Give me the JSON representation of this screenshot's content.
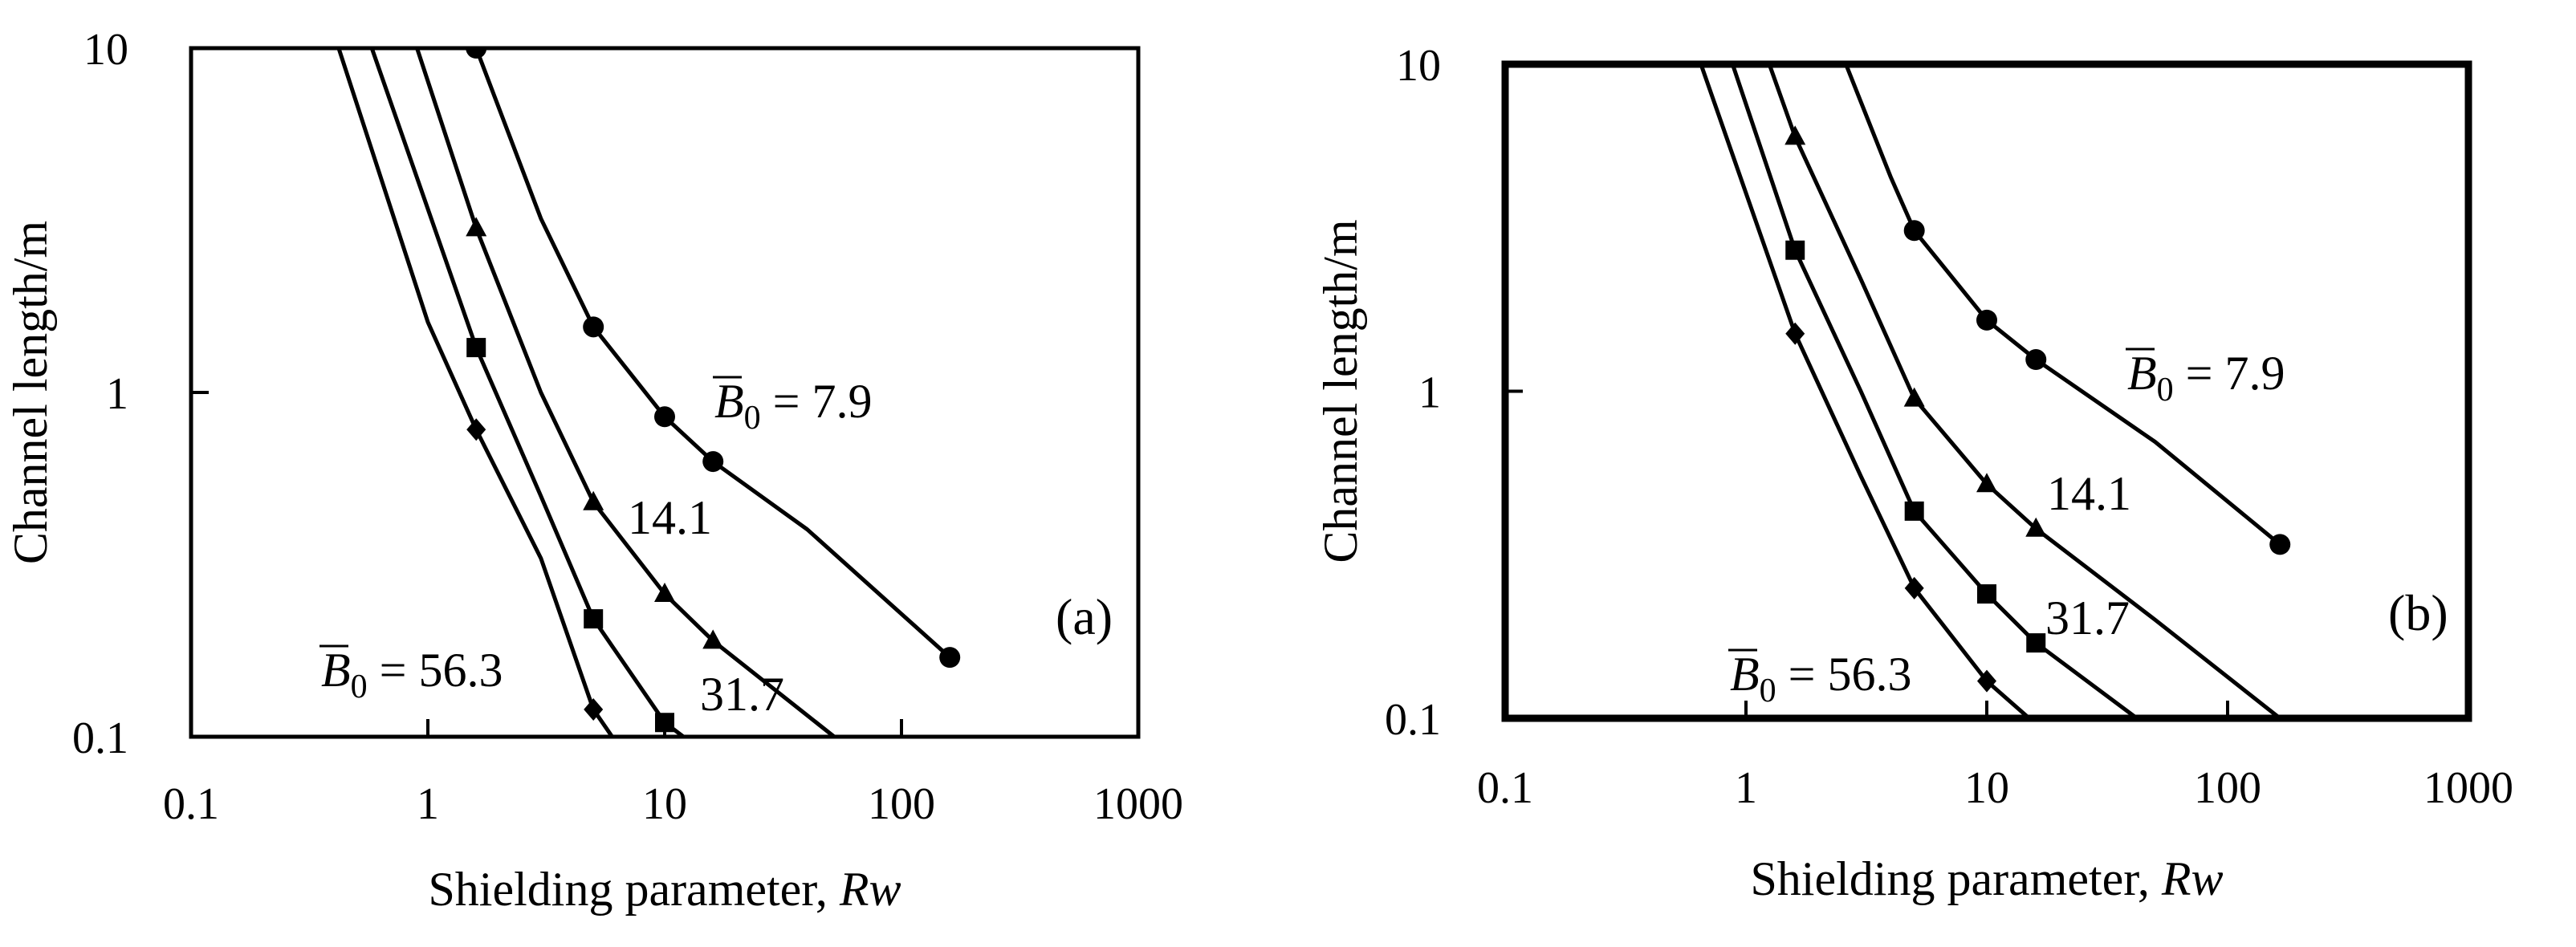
{
  "chart_data": [
    {
      "type": "line",
      "panel_label": "(a)",
      "xlabel": "Shielding parameter, ",
      "xlabel_italic": "Rw",
      "ylabel": "Channel length/m",
      "x_scale": "log",
      "y_scale": "log",
      "xlim": [
        0.1,
        1000
      ],
      "ylim": [
        0.1,
        10
      ],
      "x_ticks": [
        "0.1",
        "1",
        "10",
        "100",
        "1000"
      ],
      "y_ticks": [
        "0.1",
        "1",
        "10"
      ],
      "grid": false,
      "series": [
        {
          "name": "7.9",
          "label_prefix": "B0 = ",
          "marker": "circle",
          "line": [
            [
              1.6,
              10
            ],
            [
              3,
              3.2
            ],
            [
              5,
              1.55
            ],
            [
              10,
              0.85
            ],
            [
              16,
              0.63
            ],
            [
              40,
              0.4
            ],
            [
              160,
              0.17
            ]
          ],
          "points": [
            [
              1.6,
              10
            ],
            [
              5,
              1.55
            ],
            [
              10,
              0.85
            ],
            [
              16,
              0.63
            ],
            [
              160,
              0.17
            ]
          ]
        },
        {
          "name": "14.1",
          "marker": "triangle",
          "line": [
            [
              0.9,
              10
            ],
            [
              1.6,
              3.0
            ],
            [
              3,
              1.0
            ],
            [
              5,
              0.48
            ],
            [
              10,
              0.26
            ],
            [
              16,
              0.19
            ],
            [
              52,
              0.1
            ]
          ],
          "points": [
            [
              1.6,
              3.0
            ],
            [
              5,
              0.48
            ],
            [
              10,
              0.26
            ],
            [
              16,
              0.19
            ]
          ]
        },
        {
          "name": "31.7",
          "marker": "square",
          "line": [
            [
              0.58,
              10
            ],
            [
              1.6,
              1.35
            ],
            [
              3,
              0.5
            ],
            [
              5,
              0.22
            ],
            [
              10,
              0.11
            ],
            [
              12,
              0.1
            ]
          ],
          "points": [
            [
              1.6,
              1.35
            ],
            [
              5,
              0.22
            ],
            [
              10,
              0.11
            ]
          ]
        },
        {
          "name": "56.3",
          "label_prefix": "B0 = ",
          "marker": "diamond",
          "line": [
            [
              0.42,
              10
            ],
            [
              1.0,
              1.6
            ],
            [
              1.6,
              0.78
            ],
            [
              3,
              0.33
            ],
            [
              5,
              0.12
            ],
            [
              6,
              0.1
            ]
          ],
          "points": [
            [
              1.6,
              0.78
            ],
            [
              5,
              0.12
            ]
          ]
        }
      ]
    },
    {
      "type": "line",
      "panel_label": "(b)",
      "xlabel": "Shielding parameter, ",
      "xlabel_italic": "Rw",
      "ylabel": "Channel length/m",
      "x_scale": "log",
      "y_scale": "log",
      "xlim": [
        0.1,
        1000
      ],
      "ylim": [
        0.1,
        10
      ],
      "x_ticks": [
        "0.1",
        "1",
        "10",
        "100",
        "1000"
      ],
      "y_ticks": [
        "0.1",
        "1",
        "10"
      ],
      "grid": false,
      "series": [
        {
          "name": "7.9",
          "label_prefix": "B0 = ",
          "marker": "circle",
          "line": [
            [
              2.6,
              10
            ],
            [
              4,
              4.5
            ],
            [
              5,
              3.1
            ],
            [
              10,
              1.65
            ],
            [
              16,
              1.25
            ],
            [
              50,
              0.7
            ],
            [
              165,
              0.34
            ]
          ],
          "points": [
            [
              5,
              3.1
            ],
            [
              10,
              1.65
            ],
            [
              16,
              1.25
            ],
            [
              165,
              0.34
            ]
          ]
        },
        {
          "name": "14.1",
          "marker": "triangle",
          "line": [
            [
              1.25,
              10
            ],
            [
              1.6,
              6.0
            ],
            [
              3,
              2.2
            ],
            [
              5,
              0.95
            ],
            [
              10,
              0.52
            ],
            [
              16,
              0.38
            ],
            [
              50,
              0.2
            ],
            [
              165,
              0.1
            ]
          ],
          "points": [
            [
              1.6,
              6.0
            ],
            [
              5,
              0.95
            ],
            [
              10,
              0.52
            ],
            [
              16,
              0.38
            ]
          ]
        },
        {
          "name": "31.7",
          "marker": "square",
          "line": [
            [
              0.88,
              10
            ],
            [
              1.6,
              2.7
            ],
            [
              3,
              1.0
            ],
            [
              5,
              0.43
            ],
            [
              10,
              0.24
            ],
            [
              16,
              0.17
            ],
            [
              42,
              0.1
            ]
          ],
          "points": [
            [
              1.6,
              2.7
            ],
            [
              5,
              0.43
            ],
            [
              10,
              0.24
            ],
            [
              16,
              0.17
            ]
          ]
        },
        {
          "name": "56.3",
          "label_prefix": "B0 = ",
          "marker": "diamond",
          "line": [
            [
              0.65,
              10
            ],
            [
              1.6,
              1.5
            ],
            [
              3,
              0.55
            ],
            [
              5,
              0.25
            ],
            [
              10,
              0.13
            ],
            [
              15,
              0.1
            ]
          ],
          "points": [
            [
              1.6,
              1.5
            ],
            [
              5,
              0.25
            ],
            [
              10,
              0.13
            ]
          ]
        }
      ]
    }
  ]
}
